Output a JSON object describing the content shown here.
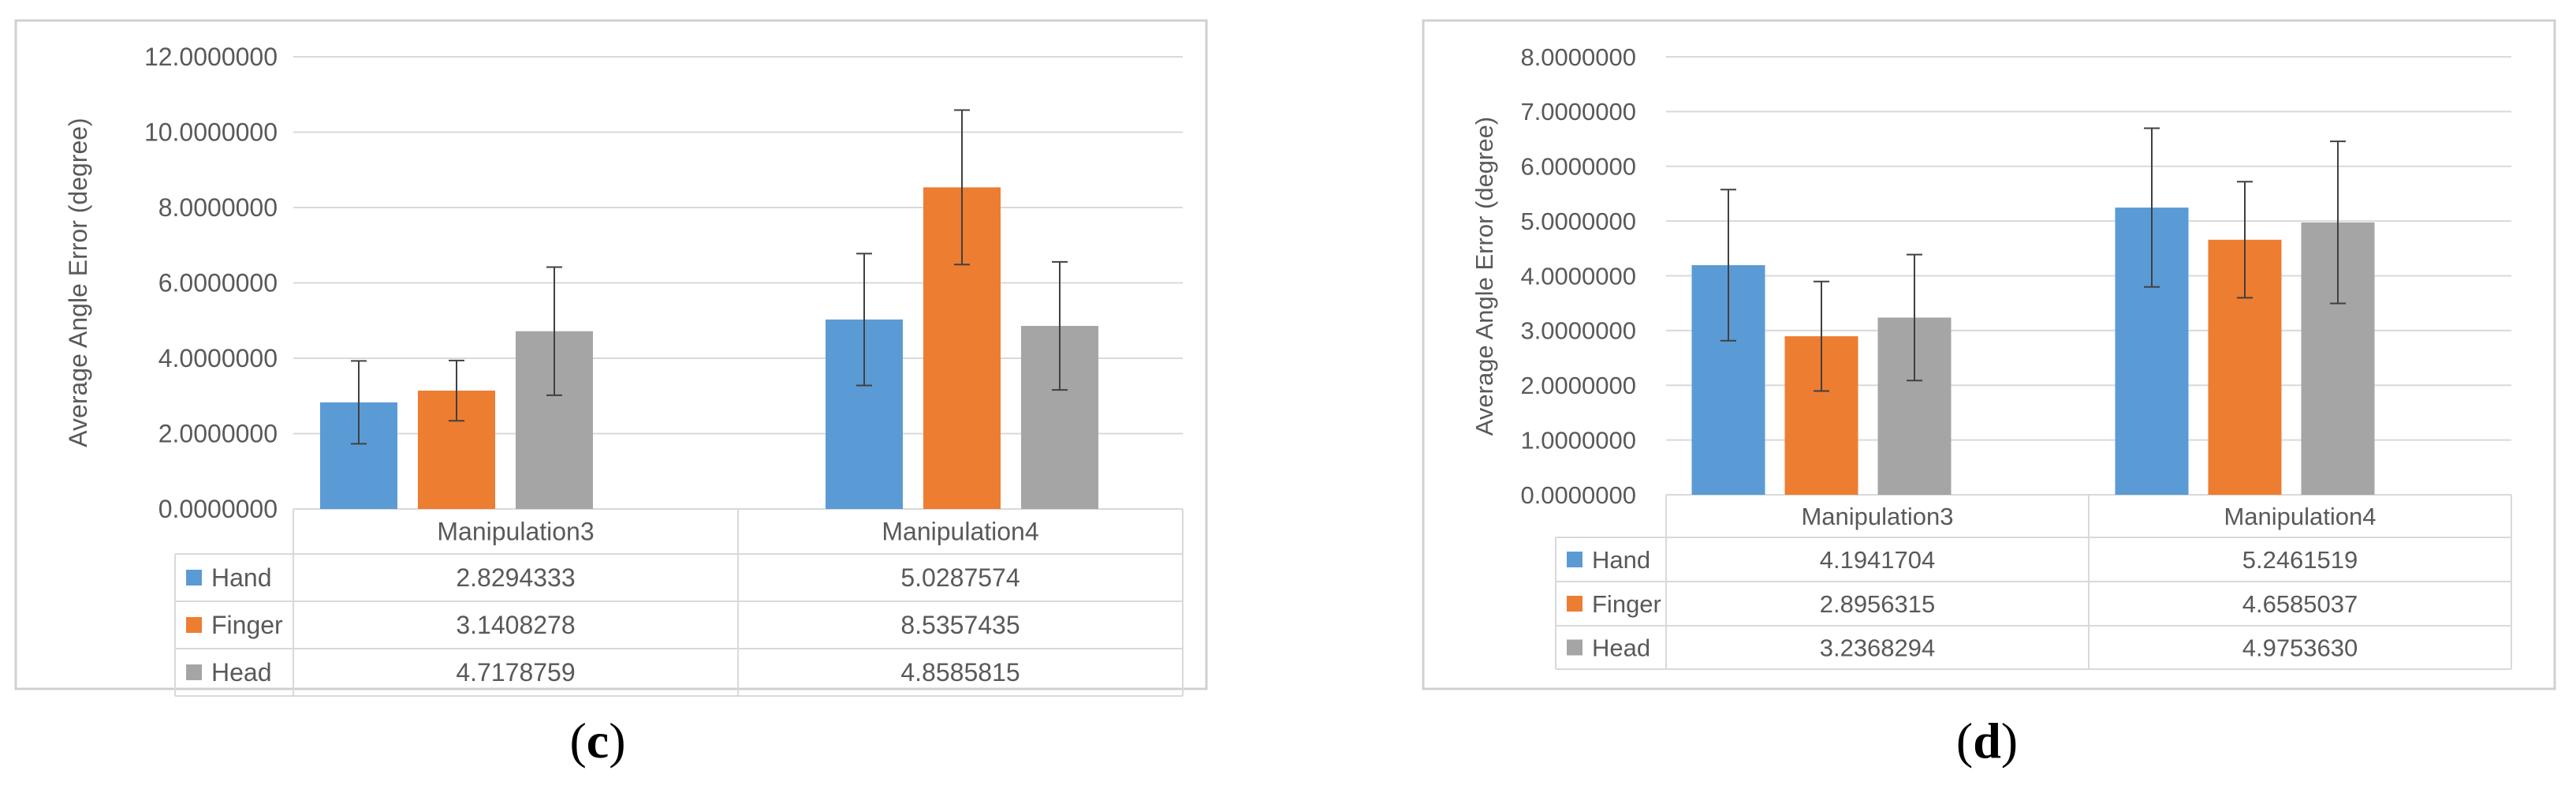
{
  "colors": {
    "hand": "#5B9BD5",
    "finger": "#ED7D31",
    "head": "#A5A5A5",
    "grid": "#D9D9D9",
    "text": "#595959",
    "frame": "#D0D0D0",
    "error_bar": "#404040"
  },
  "chart_data": [
    {
      "type": "bar",
      "panel_label": "c",
      "ylabel": "Average Angle Error (degree)",
      "xlabel": "",
      "categories": [
        "Manipulation3",
        "Manipulation4"
      ],
      "ylim": [
        0,
        12
      ],
      "yticks": [
        "0.0000000",
        "2.0000000",
        "4.0000000",
        "6.0000000",
        "8.0000000",
        "10.0000000",
        "12.0000000"
      ],
      "grid": true,
      "legend": "data-table",
      "series": [
        {
          "name": "Hand",
          "color": "#5B9BD5",
          "values": [
            2.8294333,
            5.0287574
          ],
          "labels": [
            "2.8294333",
            "5.0287574"
          ],
          "error": [
            1.1,
            1.75
          ]
        },
        {
          "name": "Finger",
          "color": "#ED7D31",
          "values": [
            3.1408278,
            8.5357435
          ],
          "labels": [
            "3.1408278",
            "8.5357435"
          ],
          "error": [
            0.8,
            2.05
          ]
        },
        {
          "name": "Head",
          "color": "#A5A5A5",
          "values": [
            4.7178759,
            4.8585815
          ],
          "labels": [
            "4.7178759",
            "4.8585815"
          ],
          "error": [
            1.7,
            1.7
          ]
        }
      ]
    },
    {
      "type": "bar",
      "panel_label": "d",
      "ylabel": "Average Angle Error (degree)",
      "xlabel": "",
      "categories": [
        "Manipulation3",
        "Manipulation4"
      ],
      "ylim": [
        0,
        8
      ],
      "yticks": [
        "0.0000000",
        "1.0000000",
        "2.0000000",
        "3.0000000",
        "4.0000000",
        "5.0000000",
        "6.0000000",
        "7.0000000",
        "8.0000000"
      ],
      "grid": true,
      "legend": "data-table",
      "series": [
        {
          "name": "Hand",
          "color": "#5B9BD5",
          "values": [
            4.1941704,
            5.2461519
          ],
          "labels": [
            "4.1941704",
            "5.2461519"
          ],
          "error": [
            1.38,
            1.45
          ]
        },
        {
          "name": "Finger",
          "color": "#ED7D31",
          "values": [
            2.8956315,
            4.6585037
          ],
          "labels": [
            "2.8956315",
            "4.6585037"
          ],
          "error": [
            1.0,
            1.06
          ]
        },
        {
          "name": "Head",
          "color": "#A5A5A5",
          "values": [
            3.2368294,
            4.975363
          ],
          "labels": [
            "3.2368294",
            "4.9753630"
          ],
          "error": [
            1.15,
            1.48
          ]
        }
      ]
    }
  ]
}
